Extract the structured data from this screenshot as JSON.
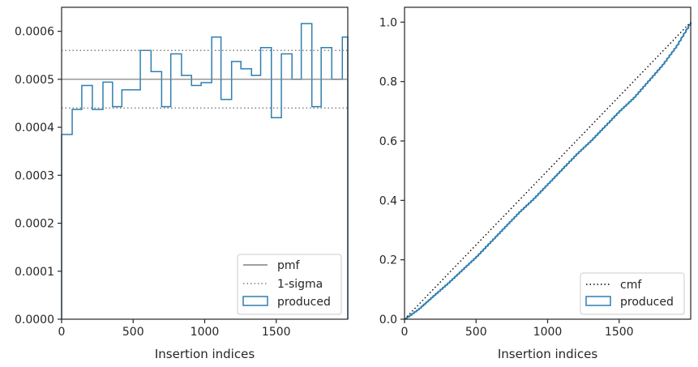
{
  "chart_data": [
    {
      "type": "histogram-step",
      "xlabel": "Insertion indices",
      "ylabel": "",
      "xlim": [
        0,
        2000
      ],
      "ylim": [
        0,
        0.00065
      ],
      "xticks": [
        0,
        500,
        1000,
        1500
      ],
      "xtick_labels": [
        "0",
        "500",
        "1000",
        "1500"
      ],
      "yticks": [
        0,
        0.0001,
        0.0002,
        0.0003,
        0.0004,
        0.0005,
        0.0006
      ],
      "ytick_labels": [
        "0.0000",
        "0.0001",
        "0.0002",
        "0.0003",
        "0.0004",
        "0.0005",
        "0.0006"
      ],
      "reference_lines": [
        {
          "name": "pmf",
          "value": 0.0005,
          "style": "solid",
          "color": "#808080"
        },
        {
          "name": "1-sigma",
          "values": [
            0.00044,
            0.00056
          ],
          "style": "dotted",
          "color": "#808080"
        }
      ],
      "series": [
        {
          "name": "produced",
          "color": "#2f7fb0",
          "bin_edges": [
            0,
            74,
            141,
            215,
            289,
            356,
            421,
            550,
            625,
            699,
            763,
            838,
            908,
            975,
            1049,
            1114,
            1188,
            1253,
            1327,
            1391,
            1466,
            1536,
            1610,
            1675,
            1749,
            1814,
            1888,
            1962,
            2000
          ],
          "values": [
            0.000385,
            0.000437,
            0.000487,
            0.000437,
            0.000494,
            0.000443,
            0.000478,
            0.00056,
            0.000516,
            0.000443,
            0.000553,
            0.000508,
            0.000487,
            0.000493,
            0.000588,
            0.000458,
            0.000537,
            0.000522,
            0.000508,
            0.000566,
            0.00042,
            0.000553,
            0.0005,
            0.000616,
            0.000443,
            0.000566,
            0.0005,
            0.000588
          ]
        }
      ],
      "legend": {
        "location": "lower right",
        "entries": [
          "pmf",
          "1-sigma",
          "produced"
        ]
      },
      "grid": false
    },
    {
      "type": "step-cdf",
      "xlabel": "Insertion indices",
      "ylabel": "",
      "xlim": [
        0,
        2000
      ],
      "ylim": [
        0,
        1.05
      ],
      "xticks": [
        0,
        500,
        1000,
        1500
      ],
      "xtick_labels": [
        "0",
        "500",
        "1000",
        "1500"
      ],
      "yticks": [
        0,
        0.2,
        0.4,
        0.6,
        0.8,
        1.0
      ],
      "ytick_labels": [
        "0.0",
        "0.2",
        "0.4",
        "0.6",
        "0.8",
        "1.0"
      ],
      "series": [
        {
          "name": "cmf",
          "style": "dotted",
          "color": "#000000",
          "x": [
            0,
            2000
          ],
          "y": [
            0,
            1.0
          ]
        },
        {
          "name": "produced",
          "style": "solid",
          "color": "#2f7fb0",
          "x": [
            0,
            100,
            200,
            300,
            400,
            500,
            600,
            700,
            800,
            900,
            1000,
            1100,
            1200,
            1300,
            1400,
            1500,
            1600,
            1700,
            1800,
            1900,
            2000
          ],
          "y": [
            0,
            0.035,
            0.078,
            0.12,
            0.165,
            0.21,
            0.26,
            0.31,
            0.36,
            0.405,
            0.455,
            0.505,
            0.555,
            0.6,
            0.65,
            0.7,
            0.745,
            0.8,
            0.855,
            0.92,
            1.0
          ]
        }
      ],
      "legend": {
        "location": "lower right",
        "entries": [
          "cmf",
          "produced"
        ]
      },
      "grid": false
    }
  ]
}
